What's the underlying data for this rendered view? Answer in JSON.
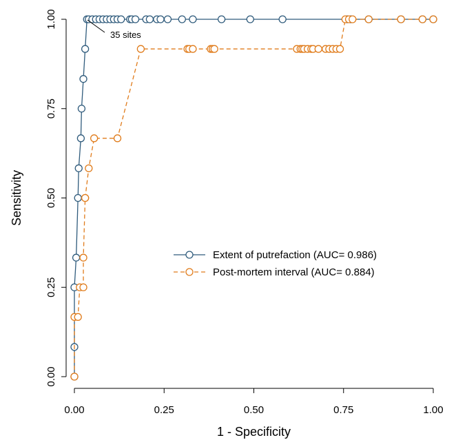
{
  "chart_data": {
    "type": "line",
    "title": "",
    "xlabel": "1 - Specificity",
    "ylabel": "Sensitivity",
    "xlim": [
      0,
      1
    ],
    "ylim": [
      0,
      1
    ],
    "xticks": [
      "0.00",
      "0.25",
      "0.50",
      "0.75",
      "1.00"
    ],
    "yticks": [
      "0.00",
      "0.25",
      "0.50",
      "0.75",
      "1.00"
    ],
    "grid": false,
    "legend_position": "center-right",
    "annotation": {
      "text": "35 sites",
      "x": 0.035,
      "y": 1.0
    },
    "series": [
      {
        "name": "Extent of putrefaction (AUC= 0.986)",
        "color": "#2f5b7c",
        "line_style": "solid",
        "x": [
          0,
          0,
          0.0,
          0.005,
          0.01,
          0.012,
          0.018,
          0.02,
          0.025,
          0.03,
          0.035,
          0.04,
          0.05,
          0.06,
          0.07,
          0.08,
          0.09,
          0.1,
          0.11,
          0.12,
          0.13,
          0.155,
          0.16,
          0.17,
          0.2,
          0.21,
          0.23,
          0.24,
          0.26,
          0.3,
          0.33,
          0.41,
          0.49,
          0.58,
          0.76,
          0.77,
          0.82,
          0.91,
          0.97,
          1.0
        ],
        "y": [
          0,
          0.083,
          0.25,
          0.333,
          0.5,
          0.583,
          0.667,
          0.75,
          0.833,
          0.917,
          1.0,
          1.0,
          1.0,
          1.0,
          1.0,
          1.0,
          1.0,
          1.0,
          1.0,
          1.0,
          1.0,
          1.0,
          1.0,
          1.0,
          1.0,
          1.0,
          1.0,
          1.0,
          1.0,
          1.0,
          1.0,
          1.0,
          1.0,
          1.0,
          1.0,
          1.0,
          1.0,
          1.0,
          1.0,
          1.0
        ]
      },
      {
        "name": "Post-mortem interval (AUC= 0.884)",
        "color": "#e07b1a",
        "line_style": "dashed",
        "x": [
          0,
          0,
          0.01,
          0.015,
          0.025,
          0.025,
          0.03,
          0.03,
          0.04,
          0.055,
          0.12,
          0.185,
          0.315,
          0.32,
          0.33,
          0.38,
          0.385,
          0.39,
          0.62,
          0.63,
          0.635,
          0.64,
          0.65,
          0.66,
          0.665,
          0.68,
          0.7,
          0.71,
          0.72,
          0.73,
          0.74,
          0.755,
          0.765,
          0.775,
          0.82,
          0.91,
          0.97,
          1.0
        ],
        "y": [
          0,
          0.167,
          0.167,
          0.25,
          0.25,
          0.333,
          0.5,
          0.5,
          0.583,
          0.667,
          0.667,
          0.917,
          0.917,
          0.917,
          0.917,
          0.917,
          0.917,
          0.917,
          0.917,
          0.917,
          0.917,
          0.917,
          0.917,
          0.917,
          0.917,
          0.917,
          0.917,
          0.917,
          0.917,
          0.917,
          0.917,
          1.0,
          1.0,
          1.0,
          1.0,
          1.0,
          1.0,
          1.0
        ]
      }
    ]
  }
}
